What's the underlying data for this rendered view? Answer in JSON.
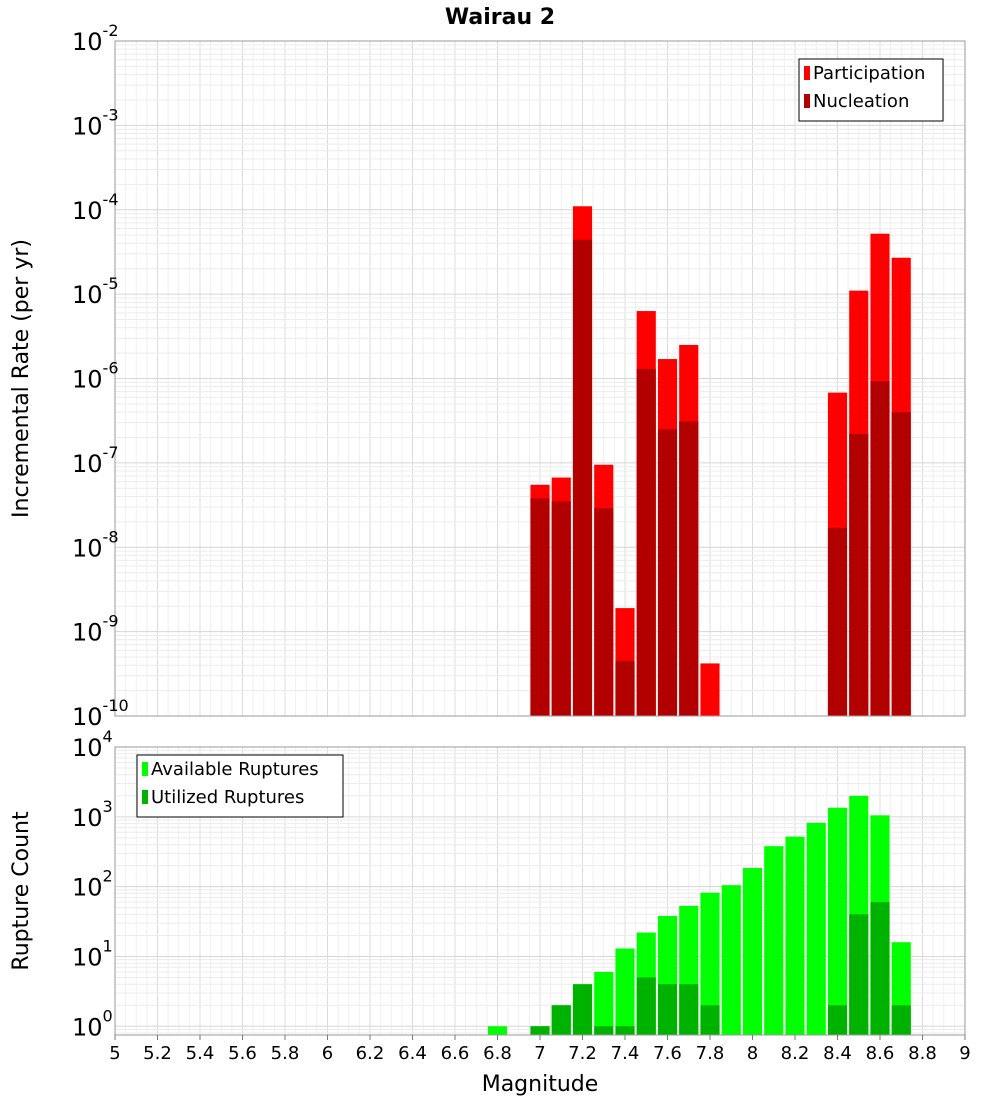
{
  "title": "Wairau 2",
  "chart_data": [
    {
      "type": "bar",
      "yscale": "log",
      "ylabel": "Incremental Rate (per yr)",
      "xlabel": "Magnitude",
      "xlim": [
        5,
        9
      ],
      "ylim": [
        1e-10,
        0.01
      ],
      "grid": true,
      "legend_position": "top-right",
      "x": [
        7.0,
        7.1,
        7.2,
        7.3,
        7.4,
        7.5,
        7.6,
        7.7,
        7.8,
        8.4,
        8.5,
        8.6,
        8.7
      ],
      "series": [
        {
          "name": "Participation",
          "color": "#ff0000",
          "values": [
            5.5e-08,
            6.7e-08,
            0.00011,
            9.5e-08,
            1.9e-09,
            6.3e-06,
            1.7e-06,
            2.5e-06,
            4.2e-10,
            6.8e-07,
            1.1e-05,
            5.2e-05,
            2.7e-05
          ]
        },
        {
          "name": "Nucleation",
          "color": "#b20000",
          "values": [
            3.8e-08,
            3.5e-08,
            4.4e-05,
            2.9e-08,
            4.5e-10,
            1.3e-06,
            2.5e-07,
            3.1e-07,
            null,
            1.7e-08,
            2.2e-07,
            9.3e-07,
            4e-07
          ]
        }
      ]
    },
    {
      "type": "bar",
      "yscale": "log",
      "ylabel": "Rupture Count",
      "xlabel": "Magnitude",
      "xlim": [
        5,
        9
      ],
      "ylim": [
        0.75,
        10000
      ],
      "grid": true,
      "legend_position": "top-left",
      "x": [
        6.8,
        7.0,
        7.1,
        7.2,
        7.3,
        7.4,
        7.5,
        7.6,
        7.7,
        7.8,
        7.9,
        8.0,
        8.1,
        8.2,
        8.3,
        8.4,
        8.5,
        8.6,
        8.7
      ],
      "series": [
        {
          "name": "Available Ruptures",
          "color": "#00ff00",
          "values": [
            1,
            1,
            2,
            4,
            6,
            13,
            22,
            38,
            53,
            82,
            105,
            185,
            380,
            520,
            820,
            1350,
            2000,
            1050,
            16
          ]
        },
        {
          "name": "Utilized Ruptures",
          "color": "#00b200",
          "values": [
            null,
            1,
            2,
            4,
            1,
            1,
            5,
            4,
            4,
            2,
            null,
            null,
            null,
            null,
            null,
            2,
            40,
            60,
            2
          ]
        }
      ]
    }
  ],
  "x_ticks": [
    "5",
    "5.2",
    "5.4",
    "5.6",
    "5.8",
    "6",
    "6.2",
    "6.4",
    "6.6",
    "6.8",
    "7",
    "7.2",
    "7.4",
    "7.6",
    "7.8",
    "8",
    "8.2",
    "8.4",
    "8.6",
    "8.8",
    "9"
  ],
  "top_yticks": [
    {
      "base": "10",
      "exp": "-2"
    },
    {
      "base": "10",
      "exp": "-3"
    },
    {
      "base": "10",
      "exp": "-4"
    },
    {
      "base": "10",
      "exp": "-5"
    },
    {
      "base": "10",
      "exp": "-6"
    },
    {
      "base": "10",
      "exp": "-7"
    },
    {
      "base": "10",
      "exp": "-8"
    },
    {
      "base": "10",
      "exp": "-9"
    },
    {
      "base": "10",
      "exp": "-10"
    }
  ],
  "bottom_yticks": [
    {
      "base": "10",
      "exp": "4"
    },
    {
      "base": "10",
      "exp": "3"
    },
    {
      "base": "10",
      "exp": "2"
    },
    {
      "base": "10",
      "exp": "1"
    },
    {
      "base": "10",
      "exp": "0"
    }
  ]
}
